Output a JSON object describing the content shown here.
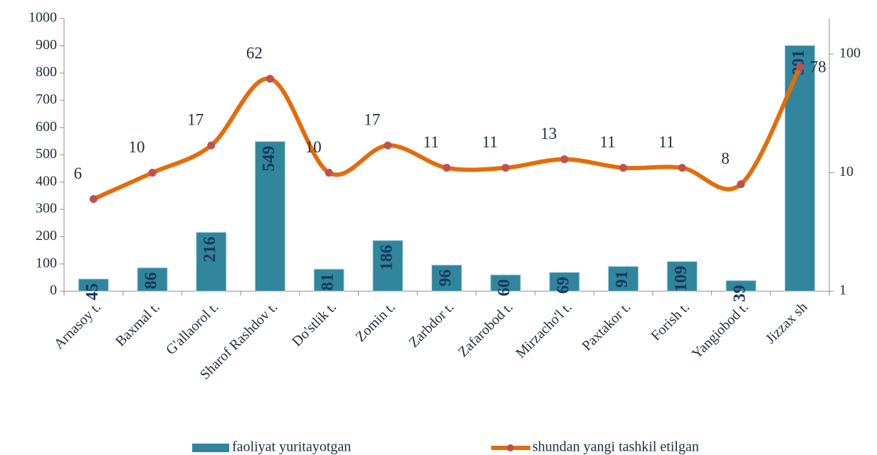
{
  "chart_data": {
    "type": "bar_line",
    "categories": [
      "Arnasoy t.",
      "Baxmal t.",
      "G'allaorol t.",
      "Sharof Rashdov  t.",
      "Do'stlik t.",
      "Zomin t.",
      "Zarbdor t.",
      "Zafarobod t.",
      "Mirzacho'l t.",
      "Paxtakor t.",
      "Forish t.",
      "Yangiobod t.",
      "Jizzax sh"
    ],
    "series": [
      {
        "name": "faoliyat yuritayotgan",
        "color": "#31859c",
        "type": "bar",
        "values": [
          45,
          86,
          216,
          549,
          81,
          186,
          96,
          60,
          69,
          91,
          109,
          39,
          901
        ]
      },
      {
        "name": "shundan yangi tashkil etilgan",
        "color": "#e46c0a",
        "marker_color": "#c0504d",
        "type": "line",
        "axis": "y2",
        "smooth": true,
        "values": [
          6,
          10,
          17,
          62,
          10,
          17,
          11,
          11,
          13,
          11,
          11,
          8,
          78
        ]
      }
    ],
    "ylim": [
      0,
      1000
    ],
    "yticks": [
      0,
      100,
      200,
      300,
      400,
      500,
      600,
      700,
      800,
      900,
      1000
    ],
    "y2lim": [
      1,
      200
    ],
    "y2ticks": [
      1,
      10,
      100
    ],
    "y2_log": true,
    "legend": "bottom"
  }
}
